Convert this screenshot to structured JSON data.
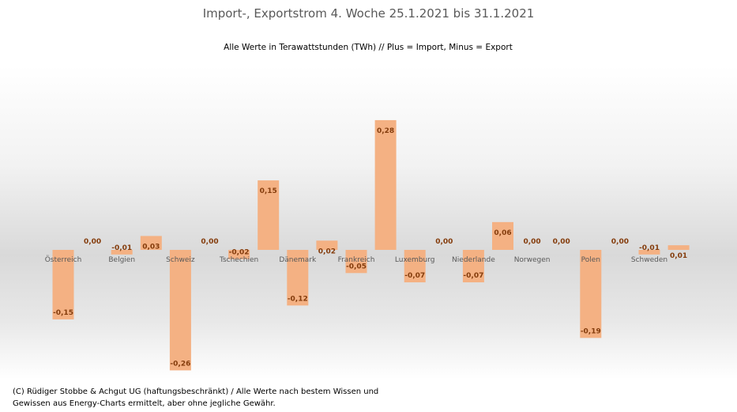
{
  "title": "Import-, Exportstrom 4. Woche 25.1.2021 bis 31.1.2021",
  "subtitle": "Alle Werte in Terawattstunden (TWh) // Plus = Import, Minus = Export",
  "footer": [
    "(C) Rüdiger Stobbe & Achgut UG (haftungsbeschränkt) / Alle Werte nach bestem Wissen und",
    "Gewissen aus Energy-Charts ermittelt, aber ohne jegliche Gewähr."
  ],
  "chart_data": {
    "type": "bar",
    "title": "Import-, Exportstrom 4. Woche 25.1.2021 bis 31.1.2021",
    "categories": [
      "Österreich",
      "Belgien",
      "Schweiz",
      "Tschechien",
      "Dänemark",
      "Frankreich",
      "Luxemburg",
      "Niederlande",
      "Norwegen",
      "Polen",
      "Schweden"
    ],
    "series": [
      {
        "values": [
          -0.15,
          -0.01,
          -0.26,
          -0.02,
          -0.12,
          -0.05,
          -0.07,
          -0.07,
          0.0,
          -0.19,
          -0.01
        ]
      },
      {
        "values": [
          0.0,
          0.03,
          0.0,
          0.15,
          0.02,
          0.28,
          0.0,
          0.06,
          0.0,
          0.0,
          0.01
        ]
      }
    ],
    "ylim": [
      -0.26,
      0.28
    ],
    "grid": false,
    "bar_color": "#f4b183",
    "label_color": "#843c0c",
    "decimal_separator": ","
  }
}
